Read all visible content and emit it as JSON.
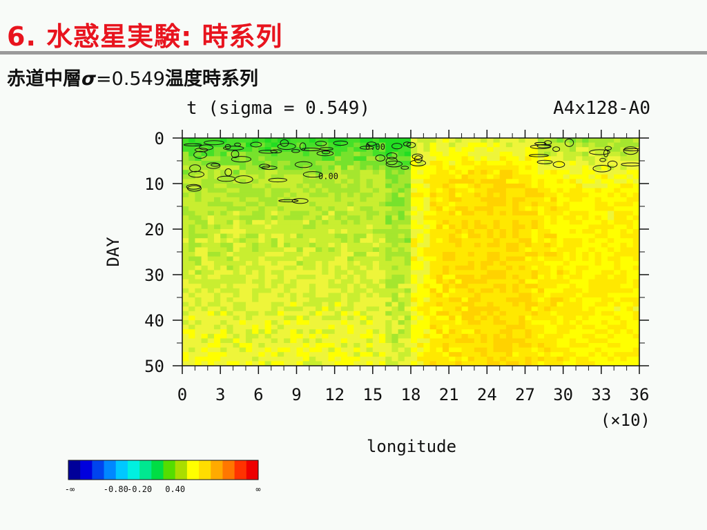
{
  "slide": {
    "title": "6. 水惑星実験: 時系列",
    "subtitle_pre": "赤道中層",
    "subtitle_sigma": "σ",
    "subtitle_num": "=0.549",
    "subtitle_post": "温度時系列"
  },
  "chart_data": {
    "type": "heatmap",
    "title": "t (sigma = 0.549)",
    "run_label": "A4x128-A0",
    "xlabel": "longitude",
    "xscale_note": "(×10)",
    "ylabel": "DAY",
    "x_ticks": [
      "0",
      "3",
      "6",
      "9",
      "12",
      "15",
      "18",
      "21",
      "24",
      "27",
      "30",
      "33",
      "36"
    ],
    "y_ticks": [
      "0",
      "10",
      "20",
      "30",
      "40",
      "50"
    ],
    "xlim": [
      0,
      36
    ],
    "ylim": [
      0,
      50
    ],
    "y_inverted": true,
    "contour_labels": [
      "0.00",
      "0.00"
    ],
    "colorbar": {
      "colors": [
        "#000099",
        "#0000dd",
        "#0044ee",
        "#0088ff",
        "#00c8ff",
        "#00f0e0",
        "#00e890",
        "#00dd44",
        "#55dd00",
        "#aadd00",
        "#ffff00",
        "#ffdd00",
        "#ffaa00",
        "#ff7700",
        "#ff3300",
        "#ee0000"
      ],
      "labels": [
        "-∞",
        "-0.80",
        "-0.20",
        "0.40",
        "∞"
      ]
    },
    "pattern_summary": {
      "green_band_lon": [
        0,
        18
      ],
      "yellow_band_lon": [
        18,
        36
      ],
      "orange_patches_lon": [
        20,
        30
      ]
    }
  }
}
